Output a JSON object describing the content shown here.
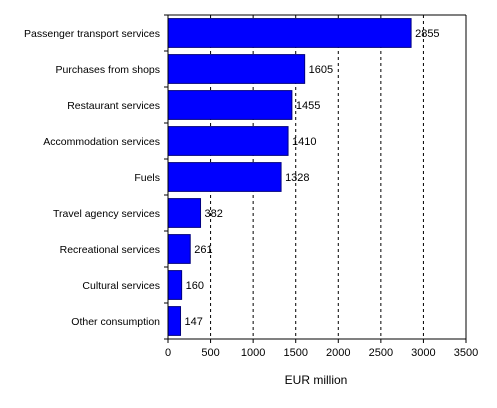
{
  "chart_data": {
    "type": "bar",
    "orientation": "horizontal",
    "categories": [
      "Passenger transport services",
      "Purchases from shops",
      "Restaurant services",
      "Accommodation services",
      "Fuels",
      "Travel agency services",
      "Recreational services",
      "Cultural services",
      "Other consumption"
    ],
    "values": [
      2855,
      1605,
      1455,
      1410,
      1328,
      382,
      261,
      160,
      147
    ],
    "data_labels": [
      "2855",
      "1605",
      "1455",
      "1410",
      "1328",
      "382",
      "261",
      "160",
      "147"
    ],
    "xlabel": "EUR million",
    "xlim": [
      0,
      3500
    ],
    "x_ticks": [
      0,
      500,
      1000,
      1500,
      2000,
      2500,
      3000,
      3500
    ],
    "x_tick_labels": [
      "0",
      "500",
      "1000",
      "1500",
      "2000",
      "2500",
      "3000",
      "3500"
    ],
    "grid": "vertical dashed",
    "legend": "none",
    "bar_color": "#0000ff",
    "bar_edge_color": "#000080"
  }
}
